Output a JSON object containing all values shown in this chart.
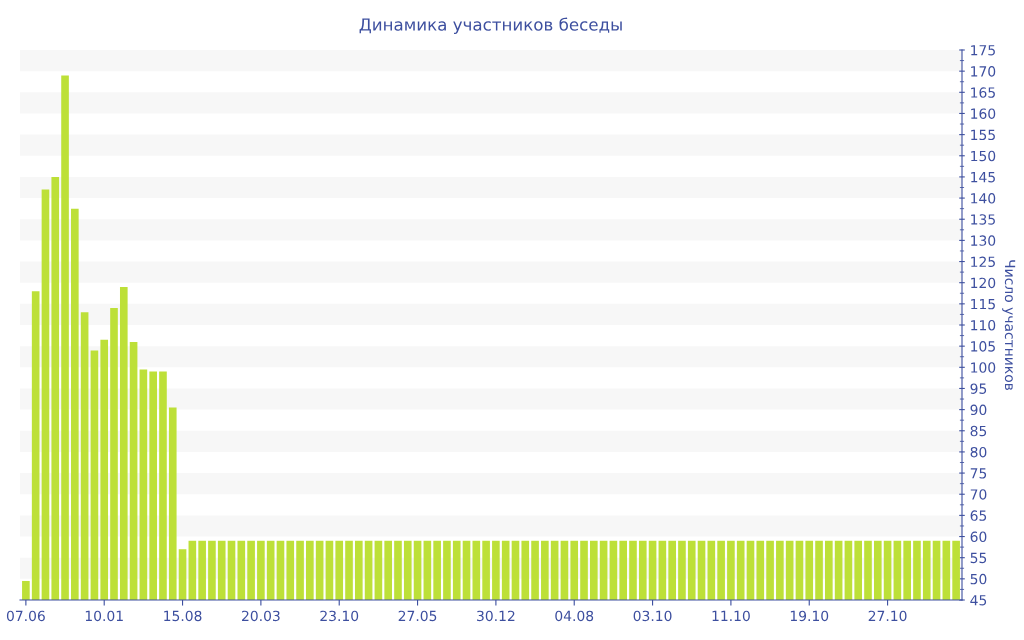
{
  "chart_data": {
    "type": "bar",
    "title": "Динамика участников беседы",
    "ylabel": "Число участников",
    "categories": [
      "07.06",
      null,
      null,
      null,
      null,
      null,
      null,
      null,
      "10.01",
      null,
      null,
      null,
      null,
      null,
      null,
      null,
      "15.08",
      null,
      null,
      null,
      null,
      null,
      null,
      null,
      "20.03",
      null,
      null,
      null,
      null,
      null,
      null,
      null,
      "23.10",
      null,
      null,
      null,
      null,
      null,
      null,
      null,
      "27.05",
      null,
      null,
      null,
      null,
      null,
      null,
      null,
      "30.12",
      null,
      null,
      null,
      null,
      null,
      null,
      null,
      "04.08",
      null,
      null,
      null,
      null,
      null,
      null,
      null,
      "03.10",
      null,
      null,
      null,
      null,
      null,
      null,
      null,
      "11.10",
      null,
      null,
      null,
      null,
      null,
      null,
      null,
      "19.10",
      null,
      null,
      null,
      null,
      null,
      null,
      null,
      "27.10",
      null,
      null,
      null,
      null,
      null,
      null,
      null
    ],
    "values": [
      49.5,
      118,
      142,
      145,
      169,
      137.5,
      113,
      104,
      106.5,
      114,
      119,
      106,
      99.5,
      99,
      99,
      90.5,
      57,
      59,
      59,
      59,
      59,
      59,
      59,
      59,
      59,
      59,
      59,
      59,
      59,
      59,
      59,
      59,
      59,
      59,
      59,
      59,
      59,
      59,
      59,
      59,
      59,
      59,
      59,
      59,
      59,
      59,
      59,
      59,
      59,
      59,
      59,
      59,
      59,
      59,
      59,
      59,
      59,
      59,
      59,
      59,
      59,
      59,
      59,
      59,
      59,
      59,
      59,
      59,
      59,
      59,
      59,
      59,
      59,
      59,
      59,
      59,
      59,
      59,
      59,
      59,
      59,
      59,
      59,
      59,
      59,
      59,
      59,
      59,
      59,
      59,
      59,
      59,
      59,
      59,
      59,
      59
    ],
    "color": "#bde038",
    "ylim": [
      45,
      175
    ],
    "yticks": [
      45,
      50,
      55,
      60,
      65,
      70,
      75,
      80,
      85,
      90,
      95,
      100,
      105,
      110,
      115,
      120,
      125,
      130,
      135,
      140,
      145,
      150,
      155,
      160,
      165,
      170,
      175
    ],
    "bands": [
      {
        "axis": "y",
        "from": 50,
        "to": 55,
        "color": "#f7f7f7"
      },
      {
        "axis": "y",
        "from": 60,
        "to": 65,
        "color": "#f7f7f7"
      },
      {
        "axis": "y",
        "from": 70,
        "to": 75,
        "color": "#f7f7f7"
      },
      {
        "axis": "y",
        "from": 80,
        "to": 85,
        "color": "#f7f7f7"
      },
      {
        "axis": "y",
        "from": 90,
        "to": 95,
        "color": "#f7f7f7"
      },
      {
        "axis": "y",
        "from": 100,
        "to": 105,
        "color": "#f7f7f7"
      },
      {
        "axis": "y",
        "from": 110,
        "to": 115,
        "color": "#f7f7f7"
      },
      {
        "axis": "y",
        "from": 120,
        "to": 125,
        "color": "#f7f7f7"
      },
      {
        "axis": "y",
        "from": 130,
        "to": 135,
        "color": "#f7f7f7"
      },
      {
        "axis": "y",
        "from": 140,
        "to": 145,
        "color": "#f7f7f7"
      },
      {
        "axis": "y",
        "from": 150,
        "to": 155,
        "color": "#f7f7f7"
      },
      {
        "axis": "y",
        "from": 160,
        "to": 165,
        "color": "#f7f7f7"
      },
      {
        "axis": "y",
        "from": 170,
        "to": 175,
        "color": "#f7f7f7"
      }
    ]
  }
}
